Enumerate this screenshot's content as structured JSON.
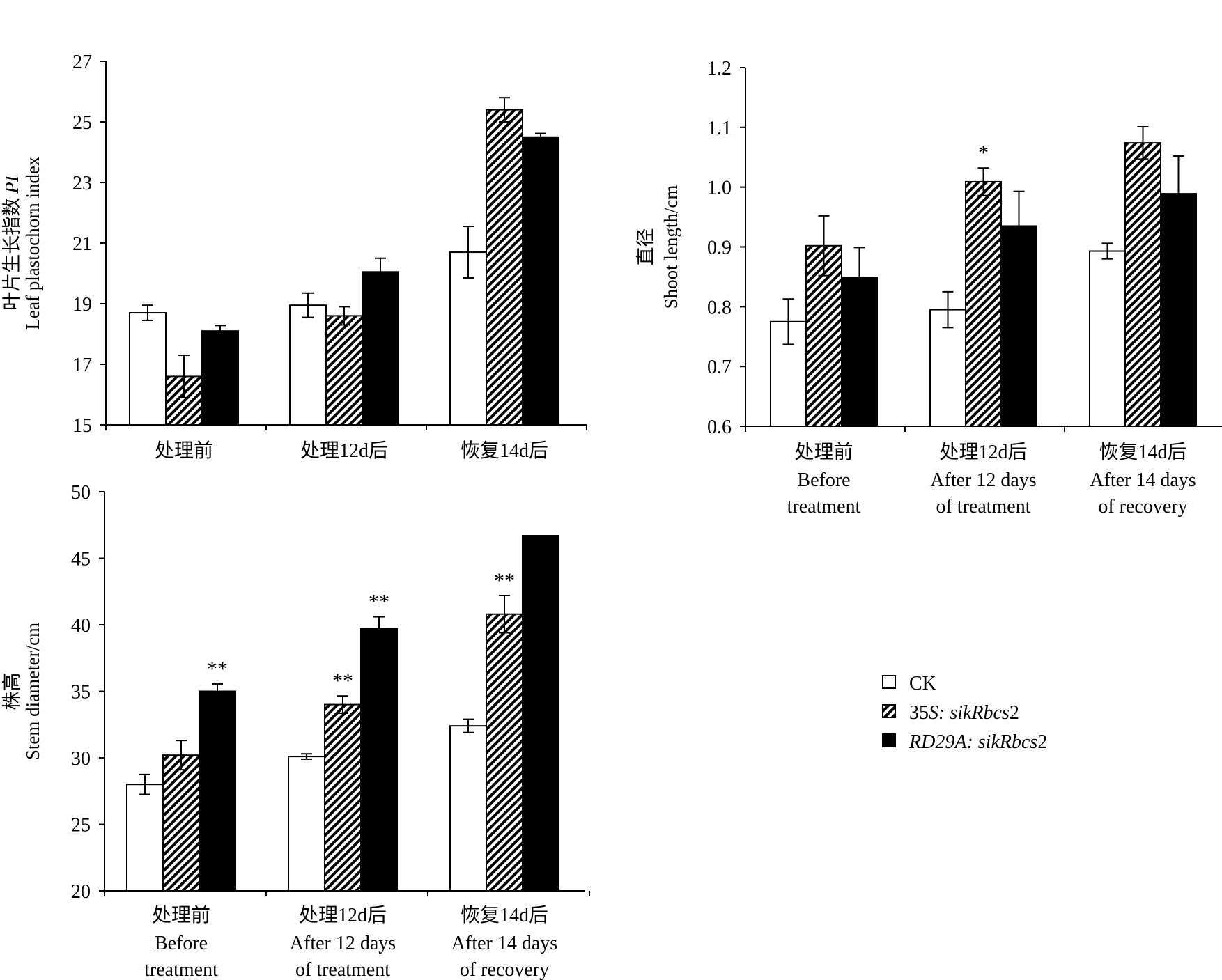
{
  "colors": {
    "axis": "#000000",
    "ck_fill": "#ffffff",
    "rd29a_fill": "#000000",
    "hatch": "#000000"
  },
  "legend": {
    "items": [
      {
        "key": "ck",
        "parts": [
          {
            "text": "CK",
            "italic": false
          }
        ]
      },
      {
        "key": "s35",
        "parts": [
          {
            "text": "35",
            "italic": false
          },
          {
            "text": "S",
            "italic": true
          },
          {
            "text": ": sik",
            "italic": true
          },
          {
            "text": "Rbcs",
            "italic": true
          },
          {
            "text": "2",
            "italic": false
          }
        ]
      },
      {
        "key": "rd29a",
        "parts": [
          {
            "text": "RD29A",
            "italic": true
          },
          {
            "text": ": sik",
            "italic": true
          },
          {
            "text": "Rbcs",
            "italic": true
          },
          {
            "text": "2",
            "italic": false
          }
        ]
      }
    ]
  },
  "chart_data": [
    {
      "id": "leaf",
      "type": "bar",
      "ylabel_cn": "叶片生长指数",
      "ylabel_cn_italic": "PI",
      "ylabel_en": "Leaf plastochorn index",
      "ylim": [
        15,
        27
      ],
      "yticks": [
        "15",
        "17",
        "19",
        "21",
        "23",
        "25",
        "27"
      ],
      "categories": [
        {
          "cn": "处理前",
          "en1": "",
          "en2": ""
        },
        {
          "cn": "处理12d后",
          "en1": "",
          "en2": ""
        },
        {
          "cn": "恢复14d后",
          "en1": "",
          "en2": ""
        }
      ],
      "series": [
        {
          "key": "ck",
          "values": [
            18.7,
            18.95,
            20.7
          ],
          "errors": [
            0.25,
            0.4,
            0.85
          ],
          "sig": [
            "",
            "",
            ""
          ]
        },
        {
          "key": "s35",
          "values": [
            16.6,
            18.6,
            25.4
          ],
          "errors": [
            0.7,
            0.3,
            0.4
          ],
          "sig": [
            "",
            "",
            ""
          ]
        },
        {
          "key": "rd29a",
          "values": [
            18.1,
            20.05,
            24.5
          ],
          "errors": [
            0.18,
            0.45,
            0.12
          ],
          "sig": [
            "",
            "",
            ""
          ]
        }
      ]
    },
    {
      "id": "shoot",
      "type": "bar",
      "ylabel_cn": "直径",
      "ylabel_cn_italic": "",
      "ylabel_en": "Shoot length/cm",
      "ylim": [
        0.6,
        1.2
      ],
      "yticks": [
        "0.6",
        "0.7",
        "0.8",
        "0.9",
        "1.0",
        "1.1",
        "1.2"
      ],
      "categories": [
        {
          "cn": "处理前",
          "en1": "Before",
          "en2": "treatment"
        },
        {
          "cn": "处理12d后",
          "en1": "After 12 days",
          "en2": "of treatment"
        },
        {
          "cn": "恢复14d后",
          "en1": "After 14 days",
          "en2": "of recovery"
        }
      ],
      "series": [
        {
          "key": "ck",
          "values": [
            0.775,
            0.795,
            0.893
          ],
          "errors": [
            0.038,
            0.03,
            0.013
          ],
          "sig": [
            "",
            "",
            ""
          ]
        },
        {
          "key": "s35",
          "values": [
            0.902,
            1.009,
            1.074
          ],
          "errors": [
            0.05,
            0.023,
            0.027
          ],
          "sig": [
            "",
            "*",
            ""
          ]
        },
        {
          "key": "rd29a",
          "values": [
            0.849,
            0.935,
            0.989
          ],
          "errors": [
            0.05,
            0.058,
            0.063
          ],
          "sig": [
            "",
            "",
            ""
          ]
        }
      ]
    },
    {
      "id": "stem",
      "type": "bar",
      "ylabel_cn": "株高",
      "ylabel_cn_italic": "",
      "ylabel_en": "Stem diameter/cm",
      "ylim": [
        20,
        50
      ],
      "yticks": [
        "20",
        "25",
        "30",
        "35",
        "40",
        "45",
        "50"
      ],
      "categories": [
        {
          "cn": "处理前",
          "en1": "Before",
          "en2": "treatment"
        },
        {
          "cn": "处理12d后",
          "en1": "After 12 days",
          "en2": "of treatment"
        },
        {
          "cn": "恢复14d后",
          "en1": "After 14 days",
          "en2": "of recovery"
        }
      ],
      "series": [
        {
          "key": "ck",
          "values": [
            28.0,
            30.1,
            32.4
          ],
          "errors": [
            0.75,
            0.2,
            0.5
          ],
          "sig": [
            "",
            "",
            ""
          ]
        },
        {
          "key": "s35",
          "values": [
            30.2,
            34.0,
            40.8
          ],
          "errors": [
            1.1,
            0.65,
            1.4
          ],
          "sig": [
            "",
            "**",
            "**"
          ]
        },
        {
          "key": "rd29a",
          "values": [
            35.0,
            39.7,
            46.7
          ],
          "errors": [
            0.55,
            0.9,
            0
          ],
          "sig": [
            "**",
            "**",
            ""
          ]
        }
      ]
    }
  ]
}
